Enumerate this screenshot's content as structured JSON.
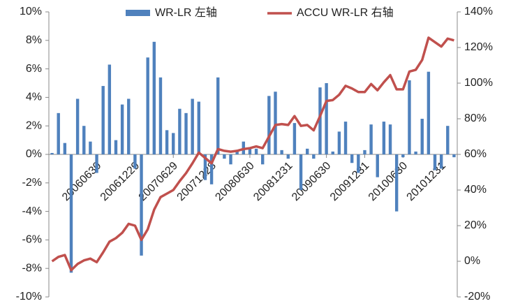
{
  "chart_data": {
    "type": "bar-line",
    "categories": [
      null,
      null,
      null,
      null,
      null,
      null,
      null,
      "20060630",
      null,
      null,
      null,
      null,
      null,
      "20061229",
      null,
      null,
      null,
      null,
      null,
      "20070629",
      null,
      null,
      null,
      null,
      null,
      "20071228",
      null,
      null,
      null,
      null,
      null,
      "20080630",
      null,
      null,
      null,
      null,
      null,
      "20081231",
      null,
      null,
      null,
      null,
      null,
      "20090630",
      null,
      null,
      null,
      null,
      null,
      "20091231",
      null,
      null,
      null,
      null,
      null,
      "20100630",
      null,
      null,
      null,
      null,
      null,
      "20101231",
      null,
      null
    ],
    "series": [
      {
        "name": "WR-LR  左轴",
        "type": "bar",
        "color": "#4f81bd",
        "axis": "y",
        "values": [
          0.1,
          2.9,
          0.8,
          -8.3,
          3.9,
          2.0,
          0.9,
          -1.3,
          4.8,
          6.3,
          1.0,
          3.5,
          3.9,
          -1.0,
          -7.1,
          6.8,
          7.9,
          5.4,
          1.7,
          1.5,
          3.2,
          2.9,
          3.9,
          3.7,
          -1.8,
          -2.1,
          5.4,
          -0.3,
          -0.7,
          0.2,
          0.9,
          0.5,
          0.4,
          -0.7,
          4.1,
          4.4,
          0.3,
          -0.3,
          2.2,
          -2.5,
          0.4,
          -0.3,
          4.7,
          5.0,
          0.2,
          1.6,
          2.3,
          -0.6,
          -1.3,
          0.3,
          2.1,
          -1.6,
          2.3,
          2.1,
          -4.0,
          -0.2,
          5.2,
          0.2,
          2.5,
          5.8,
          -1.1,
          -1.0,
          2.0,
          -0.2
        ]
      },
      {
        "name": "ACCU WR-LR  右轴",
        "type": "line",
        "color": "#c0504d",
        "axis": "y2",
        "values": [
          0,
          2.5,
          3.5,
          -5,
          -1.5,
          0.5,
          1.5,
          -0.5,
          5,
          11,
          13,
          16,
          21,
          20,
          12,
          18,
          29,
          36,
          38,
          40,
          45,
          49.5,
          55,
          61,
          58,
          55,
          63,
          62,
          61.5,
          62,
          63,
          63.5,
          64.5,
          63.5,
          70,
          76.5,
          77,
          76.5,
          81.5,
          76,
          76.5,
          73.5,
          81.5,
          90,
          90.5,
          93.5,
          98.5,
          97,
          95,
          95,
          99.5,
          96,
          100.5,
          104.5,
          96.5,
          96.5,
          106.5,
          107.5,
          113,
          125.5,
          123,
          120.5,
          125,
          124
        ]
      }
    ],
    "ylim": [
      -10,
      10
    ],
    "yticks": [
      {
        "value": -10,
        "label": "-10%"
      },
      {
        "value": -8,
        "label": "-8%"
      },
      {
        "value": -6,
        "label": "-6%"
      },
      {
        "value": -4,
        "label": "-4%"
      },
      {
        "value": -2,
        "label": "-2%"
      },
      {
        "value": 0,
        "label": "0%"
      },
      {
        "value": 2,
        "label": "2%"
      },
      {
        "value": 4,
        "label": "4%"
      },
      {
        "value": 6,
        "label": "6%"
      },
      {
        "value": 8,
        "label": "8%"
      },
      {
        "value": 10,
        "label": "10%"
      }
    ],
    "y2lim": [
      -20,
      140
    ],
    "y2ticks": [
      {
        "value": -20,
        "label": "-20%"
      },
      {
        "value": 0,
        "label": "0%"
      },
      {
        "value": 20,
        "label": "20%"
      },
      {
        "value": 40,
        "label": "40%"
      },
      {
        "value": 60,
        "label": "60%"
      },
      {
        "value": 80,
        "label": "80%"
      },
      {
        "value": 100,
        "label": "100%"
      },
      {
        "value": 120,
        "label": "120%"
      },
      {
        "value": 140,
        "label": "140%"
      }
    ],
    "legend": "top"
  }
}
